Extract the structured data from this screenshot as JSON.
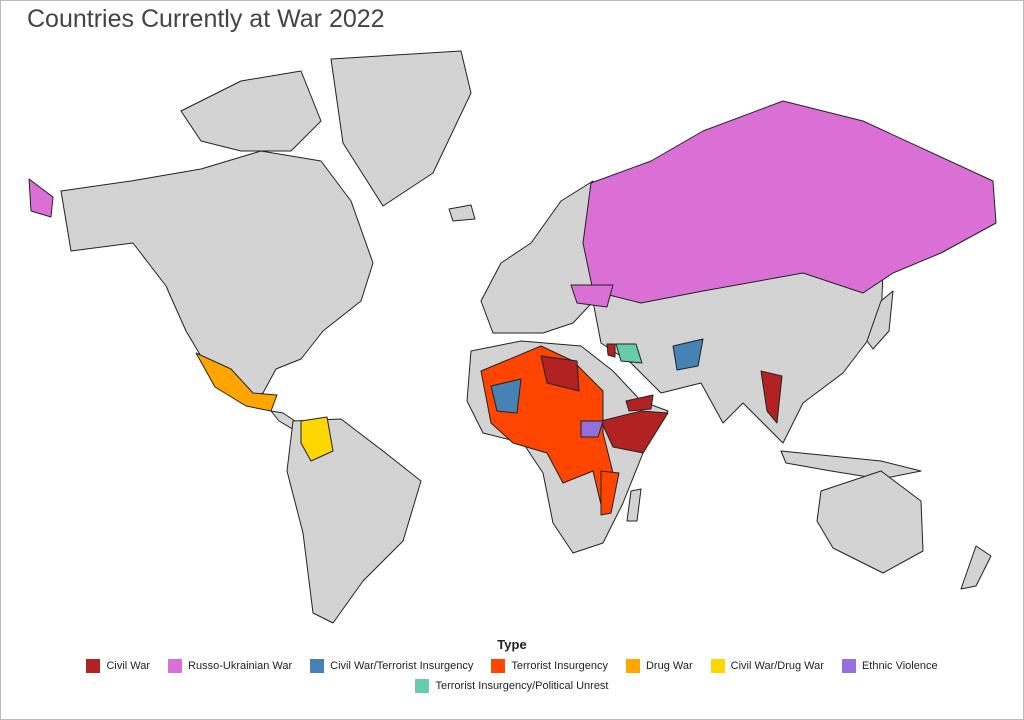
{
  "title": "Countries Currently at War 2022",
  "legend": {
    "title": "Type",
    "items": [
      {
        "name": "Civil War",
        "color": "#b22222"
      },
      {
        "name": "Russo-Ukrainian War",
        "color": "#da70d6"
      },
      {
        "name": "Civil War/Terrorist Insurgency",
        "color": "#4682b4"
      },
      {
        "name": "Terrorist Insurgency",
        "color": "#ff4500"
      },
      {
        "name": "Drug War",
        "color": "#ffa500"
      },
      {
        "name": "Civil War/Drug War",
        "color": "#ffd700"
      },
      {
        "name": "Ethnic Violence",
        "color": "#9370db"
      },
      {
        "name": "Terrorist Insurgency/Political Unrest",
        "color": "#66cdaa"
      }
    ]
  }
}
